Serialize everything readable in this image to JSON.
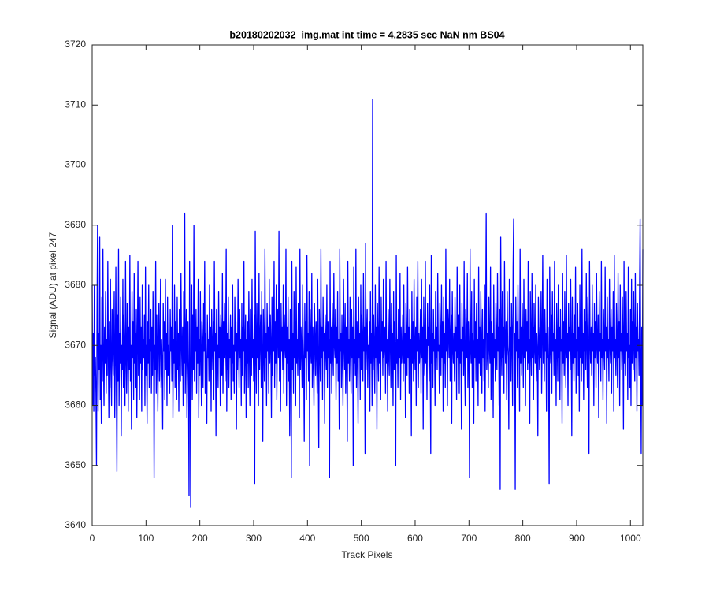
{
  "chart_data": {
    "type": "line",
    "title": "b20180202032_img.mat int time = 4.2835 sec  NaN nm BS04",
    "xlabel": "Track Pixels",
    "ylabel": "Signal (ADU) at pixel 247",
    "color": "#0000ff",
    "xlim": [
      0,
      1023
    ],
    "xticks": [
      0,
      100,
      200,
      300,
      400,
      500,
      600,
      700,
      800,
      900,
      1000
    ],
    "ylim": [
      3640,
      3720
    ],
    "yticks": [
      3640,
      3650,
      3660,
      3670,
      3680,
      3690,
      3700,
      3710,
      3720
    ],
    "grid": false,
    "values": [
      3680,
      3660,
      3672,
      3659,
      3680,
      3665,
      3668,
      3662,
      3650,
      3675,
      3690,
      3659,
      3672,
      3666,
      3688,
      3661,
      3670,
      3657,
      3678,
      3664,
      3686,
      3668,
      3660,
      3673,
      3667,
      3679,
      3662,
      3671,
      3665,
      3684,
      3669,
      3658,
      3674,
      3663,
      3681,
      3667,
      3660,
      3676,
      3669,
      3665,
      3671,
      3679,
      3658,
      3668,
      3683,
      3662,
      3649,
      3675,
      3664,
      3686,
      3660,
      3672,
      3667,
      3678,
      3655,
      3670,
      3666,
      3681,
      3663,
      3675,
      3669,
      3660,
      3684,
      3668,
      3662,
      3677,
      3671,
      3659,
      3673,
      3666,
      3685,
      3664,
      3670,
      3656,
      3679,
      3668,
      3674,
      3661,
      3682,
      3667,
      3672,
      3663,
      3676,
      3658,
      3670,
      3684,
      3665,
      3669,
      3661,
      3678,
      3667,
      3673,
      3659,
      3680,
      3666,
      3671,
      3668,
      3675,
      3660,
      3683,
      3665,
      3670,
      3657,
      3674,
      3667,
      3680,
      3663,
      3671,
      3669,
      3676,
      3662,
      3673,
      3665,
      3679,
      3671,
      3648,
      3670,
      3666,
      3684,
      3662,
      3675,
      3668,
      3659,
      3672,
      3677,
      3664,
      3670,
      3681,
      3663,
      3671,
      3667,
      3656,
      3677,
      3669,
      3674,
      3661,
      3681,
      3666,
      3672,
      3660,
      3678,
      3665,
      3670,
      3668,
      3662,
      3676,
      3669,
      3673,
      3664,
      3690,
      3658,
      3671,
      3667,
      3680,
      3663,
      3674,
      3669,
      3661,
      3678,
      3666,
      3672,
      3659,
      3676,
      3668,
      3664,
      3682,
      3670,
      3665,
      3673,
      3660,
      3679,
      3667,
      3692,
      3662,
      3671,
      3676,
      3658,
      3669,
      3674,
      3663,
      3645,
      3684,
      3667,
      3643,
      3672,
      3680,
      3661,
      3675,
      3666,
      3690,
      3664,
      3670,
      3669,
      3676,
      3662,
      3673,
      3667,
      3681,
      3658,
      3671,
      3665,
      3679,
      3668,
      3660,
      3674,
      3670,
      3663,
      3677,
      3669,
      3684,
      3662,
      3672,
      3666,
      3657,
      3675,
      3668,
      3671,
      3664,
      3680,
      3667,
      3673,
      3659,
      3676,
      3670,
      3666,
      3674,
      3661,
      3684,
      3669,
      3672,
      3655,
      3676,
      3667,
      3670,
      3663,
      3679,
      3668,
      3673,
      3660,
      3675,
      3671,
      3665,
      3682,
      3662,
      3674,
      3668,
      3677,
      3664,
      3670,
      3686,
      3659,
      3672,
      3666,
      3678,
      3663,
      3671,
      3668,
      3675,
      3661,
      3673,
      3667,
      3680,
      3664,
      3670,
      3662,
      3678,
      3669,
      3674,
      3656,
      3672,
      3666,
      3681,
      3670,
      3663,
      3676,
      3668,
      3671,
      3660,
      3677,
      3665,
      3673,
      3669,
      3684,
      3662,
      3670,
      3675,
      3658,
      3671,
      3667,
      3674,
      3663,
      3679,
      3669,
      3660,
      3676,
      3672,
      3665,
      3681,
      3668,
      3671,
      3664,
      3675,
      3647,
      3689,
      3670,
      3662,
      3677,
      3668,
      3673,
      3660,
      3682,
      3666,
      3671,
      3675,
      3663,
      3679,
      3668,
      3654,
      3676,
      3670,
      3664,
      3686,
      3668,
      3672,
      3660,
      3677,
      3669,
      3673,
      3662,
      3681,
      3667,
      3675,
      3670,
      3658,
      3678,
      3665,
      3672,
      3669,
      3684,
      3663,
      3674,
      3667,
      3680,
      3661,
      3671,
      3676,
      3668,
      3689,
      3664,
      3672,
      3659,
      3677,
      3669,
      3673,
      3666,
      3680,
      3662,
      3675,
      3670,
      3668,
      3686,
      3660,
      3673,
      3667,
      3678,
      3664,
      3671,
      3655,
      3676,
      3669,
      3648,
      3684,
      3666,
      3672,
      3662,
      3679,
      3668,
      3674,
      3660,
      3683,
      3667,
      3671,
      3665,
      3677,
      3670,
      3658,
      3686,
      3666,
      3673,
      3669,
      3663,
      3680,
      3671,
      3667,
      3654,
      3677,
      3668,
      3674,
      3661,
      3685,
      3669,
      3672,
      3664,
      3679,
      3650,
      3676,
      3670,
      3667,
      3682,
      3663,
      3673,
      3668,
      3660,
      3677,
      3671,
      3665,
      3674,
      3669,
      3662,
      3681,
      3667,
      3653,
      3676,
      3670,
      3664,
      3686,
      3668,
      3673,
      3661,
      3678,
      3669,
      3672,
      3657,
      3675,
      3670,
      3666,
      3680,
      3663,
      3674,
      3668,
      3671,
      3648,
      3684,
      3667,
      3673,
      3662,
      3677,
      3669,
      3665,
      3682,
      3670,
      3668,
      3676,
      3661,
      3673,
      3667,
      3679,
      3664,
      3671,
      3656,
      3686,
      3669,
      3672,
      3663,
      3675,
      3668,
      3660,
      3681,
      3670,
      3666,
      3677,
      3662,
      3673,
      3669,
      3654,
      3684,
      3667,
      3671,
      3664,
      3678,
      3670,
      3662,
      3676,
      3668,
      3673,
      3650,
      3683,
      3667,
      3671,
      3665,
      3686,
      3663,
      3674,
      3669,
      3657,
      3678,
      3668,
      3672,
      3661,
      3680,
      3666,
      3675,
      3670,
      3664,
      3682,
      3669,
      3673,
      3652,
      3687,
      3666,
      3671,
      3676,
      3663,
      3670,
      3668,
      3674,
      3659,
      3679,
      3667,
      3672,
      3660,
      3711,
      3666,
      3675,
      3669,
      3662,
      3680,
      3668,
      3673,
      3656,
      3677,
      3670,
      3664,
      3683,
      3667,
      3671,
      3661,
      3678,
      3669,
      3674,
      3665,
      3681,
      3668,
      3670,
      3673,
      3662,
      3684,
      3667,
      3671,
      3659,
      3676,
      3669,
      3665,
      3681,
      3670,
      3663,
      3677,
      3668,
      3672,
      3660,
      3679,
      3666,
      3674,
      3669,
      3650,
      3685,
      3667,
      3671,
      3663,
      3676,
      3670,
      3668,
      3682,
      3661,
      3673,
      3667,
      3669,
      3675,
      3664,
      3680,
      3667,
      3672,
      3658,
      3677,
      3670,
      3665,
      3683,
      3668,
      3673,
      3662,
      3676,
      3669,
      3671,
      3655,
      3679,
      3667,
      3674,
      3664,
      3681,
      3670,
      3666,
      3673,
      3660,
      3678,
      3669,
      3684,
      3663,
      3672,
      3667,
      3670,
      3676,
      3662,
      3681,
      3668,
      3673,
      3656,
      3678,
      3669,
      3665,
      3684,
      3667,
      3671,
      3661,
      3677,
      3670,
      3673,
      3664,
      3680,
      3668,
      3652,
      3685,
      3667,
      3672,
      3663,
      3676,
      3669,
      3671,
      3660,
      3679,
      3668,
      3673,
      3666,
      3682,
      3669,
      3670,
      3662,
      3677,
      3671,
      3665,
      3680,
      3668,
      3674,
      3659,
      3678,
      3667,
      3672,
      3663,
      3686,
      3669,
      3670,
      3660,
      3676,
      3673,
      3668,
      3681,
      3664,
      3671,
      3675,
      3657,
      3679,
      3670,
      3667,
      3672,
      3664,
      3678,
      3669,
      3673,
      3661,
      3683,
      3668,
      3670,
      3675,
      3662,
      3680,
      3667,
      3671,
      3656,
      3677,
      3669,
      3673,
      3665,
      3684,
      3667,
      3660,
      3676,
      3671,
      3668,
      3682,
      3663,
      3674,
      3669,
      3648,
      3686,
      3670,
      3667,
      3679,
      3663,
      3672,
      3670,
      3657,
      3681,
      3668,
      3674,
      3664,
      3677,
      3669,
      3671,
      3660,
      3683,
      3667,
      3673,
      3665,
      3679,
      3670,
      3662,
      3676,
      3668,
      3671,
      3664,
      3680,
      3659,
      3674,
      3692,
      3666,
      3672,
      3669,
      3663,
      3678,
      3670,
      3667,
      3683,
      3661,
      3674,
      3669,
      3672,
      3658,
      3680,
      3668,
      3671,
      3664,
      3677,
      3670,
      3666,
      3682,
      3669,
      3673,
      3660,
      3676,
      3646,
      3688,
      3670,
      3665,
      3679,
      3668,
      3673,
      3662,
      3684,
      3671,
      3667,
      3674,
      3661,
      3679,
      3670,
      3668,
      3656,
      3681,
      3669,
      3673,
      3664,
      3677,
      3671,
      3660,
      3683,
      3691,
      3666,
      3672,
      3646,
      3678,
      3669,
      3674,
      3663,
      3680,
      3668,
      3671,
      3659,
      3686,
      3667,
      3673,
      3665,
      3677,
      3670,
      3663,
      3681,
      3668,
      3672,
      3660,
      3676,
      3669,
      3674,
      3666,
      3684,
      3667,
      3671,
      3657,
      3679,
      3670,
      3665,
      3682,
      3668,
      3673,
      3661,
      3677,
      3670,
      3667,
      3680,
      3664,
      3672,
      3669,
      3655,
      3678,
      3671,
      3666,
      3673,
      3668,
      3679,
      3662,
      3671,
      3685,
      3667,
      3670,
      3664,
      3676,
      3669,
      3672,
      3659,
      3681,
      3668,
      3673,
      3666,
      3647,
      3683,
      3670,
      3667,
      3675,
      3662,
      3679,
      3669,
      3672,
      3665,
      3684,
      3668,
      3671,
      3660,
      3677,
      3670,
      3664,
      3680,
      3668,
      3673,
      3661,
      3676,
      3669,
      3671,
      3657,
      3682,
      3667,
      3674,
      3665,
      3679,
      3670,
      3663,
      3685,
      3668,
      3672,
      3660,
      3677,
      3669,
      3673,
      3666,
      3681,
      3670,
      3655,
      3678,
      3667,
      3672,
      3664,
      3675,
      3668,
      3683,
      3662,
      3671,
      3669,
      3677,
      3665,
      3673,
      3659,
      3680,
      3668,
      3670,
      3664,
      3686,
      3667,
      3672,
      3661,
      3676,
      3669,
      3674,
      3666,
      3682,
      3670,
      3663,
      3678,
      3668,
      3652,
      3684,
      3671,
      3667,
      3673,
      3665,
      3680,
      3669,
      3672,
      3660,
      3677,
      3668,
      3674,
      3663,
      3682,
      3670,
      3667,
      3675,
      3658,
      3679,
      3669,
      3672,
      3664,
      3684,
      3668,
      3671,
      3661,
      3676,
      3670,
      3666,
      3683,
      3669,
      3673,
      3657,
      3678,
      3668,
      3671,
      3664,
      3681,
      3670,
      3667,
      3676,
      3662,
      3673,
      3669,
      3679,
      3659,
      3685,
      3668,
      3671,
      3665,
      3677,
      3670,
      3663,
      3682,
      3668,
      3674,
      3660,
      3680,
      3669,
      3672,
      3666,
      3678,
      3671,
      3656,
      3684,
      3667,
      3673,
      3665,
      3679,
      3669,
      3672,
      3661,
      3683,
      3668,
      3670,
      3663,
      3676,
      3660,
      3681,
      3667,
      3674,
      3666,
      3679,
      3670,
      3664,
      3682,
      3668,
      3673,
      3659,
      3677,
      3669,
      3671,
      3665,
      3680,
      3691,
      3667,
      3652,
      3673,
      3660,
      3686
    ]
  }
}
